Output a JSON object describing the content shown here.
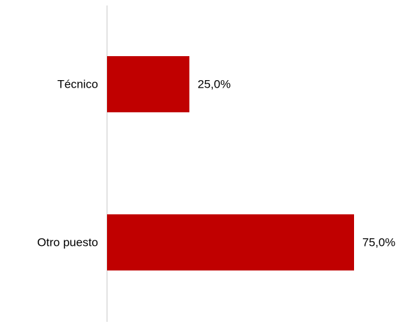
{
  "chart_data": {
    "type": "bar",
    "orientation": "horizontal",
    "categories": [
      "Técnico",
      "Otro puesto"
    ],
    "values": [
      25.0,
      75.0
    ],
    "value_labels": [
      "25,0%",
      "75,0%"
    ],
    "unit": "%",
    "xlim": [
      0,
      100
    ],
    "title": "",
    "xlabel": "",
    "ylabel": "",
    "grid": false,
    "legend": "none",
    "colors": {
      "bar": "#C00000",
      "axis": "#D9D9D9"
    }
  }
}
